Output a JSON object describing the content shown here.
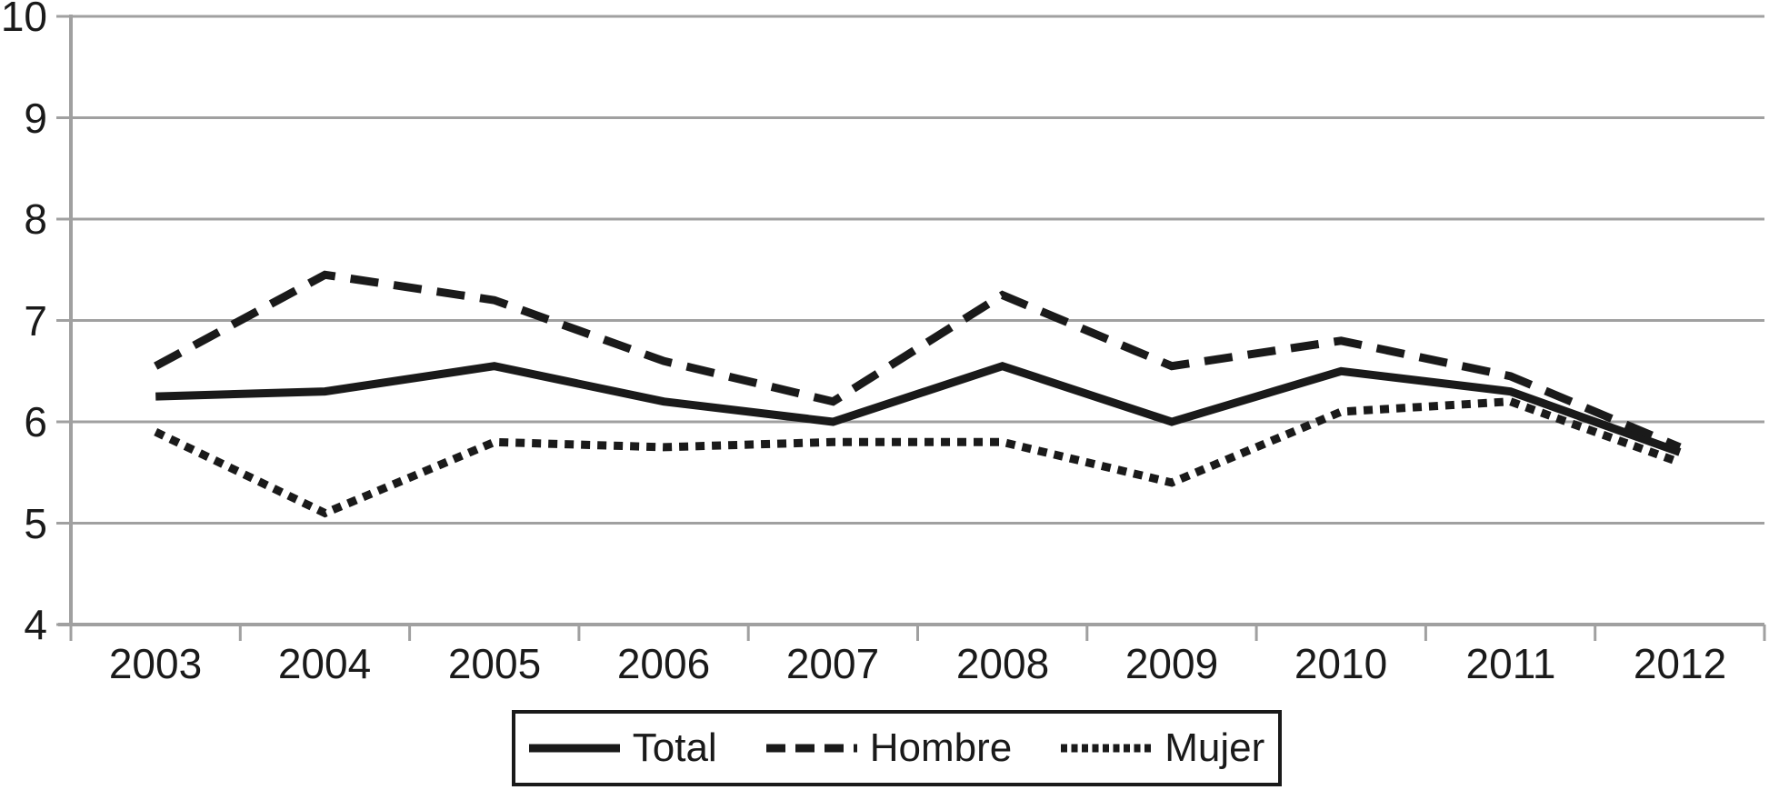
{
  "chart_data": {
    "type": "line",
    "title": "",
    "categories": [
      "2003",
      "2004",
      "2005",
      "2006",
      "2007",
      "2008",
      "2009",
      "2010",
      "2011",
      "2012"
    ],
    "series": [
      {
        "name": "Total",
        "line_style": "solid",
        "values": [
          6.25,
          6.3,
          6.55,
          6.2,
          6.0,
          6.55,
          6.0,
          6.5,
          6.3,
          5.7
        ]
      },
      {
        "name": "Hombre",
        "line_style": "dashed",
        "values": [
          6.55,
          7.45,
          7.2,
          6.6,
          6.2,
          7.25,
          6.55,
          6.8,
          6.45,
          5.75
        ]
      },
      {
        "name": "Mujer",
        "line_style": "dotted",
        "values": [
          5.9,
          5.1,
          5.8,
          5.75,
          5.8,
          5.8,
          5.4,
          6.1,
          6.2,
          5.6
        ]
      }
    ],
    "xlabel": "",
    "ylabel": "",
    "ylim": [
      4,
      10
    ],
    "yticks": [
      10,
      9,
      8,
      7,
      6,
      5,
      4
    ],
    "grid": "horizontal",
    "legend_position": "bottom",
    "line_color": "#1a1a1a",
    "grid_color": "#a0a0a0",
    "text_color": "#1a1a1a",
    "background": "#ffffff"
  }
}
